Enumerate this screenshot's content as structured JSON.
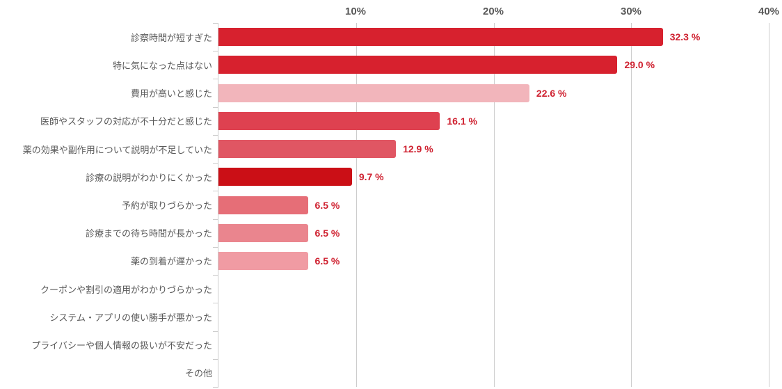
{
  "chart_data": {
    "type": "bar",
    "orientation": "horizontal",
    "title": "",
    "xlabel": "",
    "ylabel": "",
    "xlim": [
      0,
      40
    ],
    "grid": true,
    "legend": false,
    "x_ticks": [
      {
        "value": 10,
        "label": "10%"
      },
      {
        "value": 20,
        "label": "20%"
      },
      {
        "value": 30,
        "label": "30%"
      },
      {
        "value": 40,
        "label": "40%"
      }
    ],
    "categories": [
      "診察時間が短すぎた",
      "特に気になった点はない",
      "費用が高いと感じた",
      "医師やスタッフの対応が不十分だと感じた",
      "薬の効果や副作用について説明が不足していた",
      "診療の説明がわかりにくかった",
      "予約が取りづらかった",
      "診療までの待ち時間が長かった",
      "薬の到着が遅かった",
      "クーポンや割引の適用がわかりづらかった",
      "システム・アプリの使い勝手が悪かった",
      "プライバシーや個人情報の扱いが不安だった",
      "その他"
    ],
    "values": [
      32.3,
      29.0,
      22.6,
      16.1,
      12.9,
      9.7,
      6.5,
      6.5,
      6.5,
      0,
      0,
      0,
      0
    ],
    "value_labels": [
      "32.3 %",
      "29.0 %",
      "22.6 %",
      "16.1 %",
      "12.9 %",
      "9.7 %",
      "6.5 %",
      "6.5 %",
      "6.5 %",
      "",
      "",
      "",
      ""
    ],
    "bar_colors": [
      "#d7212e",
      "#d7212e",
      "#f2b5bb",
      "#de4150",
      "#e05663",
      "#cb0f16",
      "#e66e77",
      "#ea858e",
      "#f09ba3",
      null,
      null,
      null,
      null
    ],
    "colors": {
      "grid": "#cccccc",
      "axis_line": "#cccccc",
      "tick_label": "#595959",
      "category_label": "#595959",
      "value_label": "#cf2130",
      "background": "#ffffff"
    }
  }
}
